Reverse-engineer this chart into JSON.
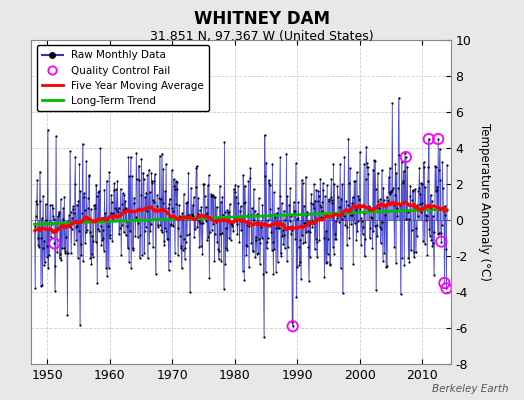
{
  "title": "WHITNEY DAM",
  "subtitle": "31.851 N, 97.367 W (United States)",
  "ylabel": "Temperature Anomaly (°C)",
  "credit": "Berkeley Earth",
  "start_year": 1948,
  "end_year": 2014,
  "ylim": [
    -8,
    10
  ],
  "yticks": [
    -8,
    -6,
    -4,
    -2,
    0,
    2,
    4,
    6,
    8,
    10
  ],
  "xticks": [
    1950,
    1960,
    1970,
    1980,
    1990,
    2000,
    2010
  ],
  "background_color": "#e8e8e8",
  "plot_bg_color": "#ffffff",
  "raw_line_color": "#3333cc",
  "raw_dot_color": "#000000",
  "ma_color": "#ff0000",
  "trend_color": "#00bb00",
  "qc_color": "#ff00ff",
  "grid_color": "#cccccc",
  "seed": 17
}
